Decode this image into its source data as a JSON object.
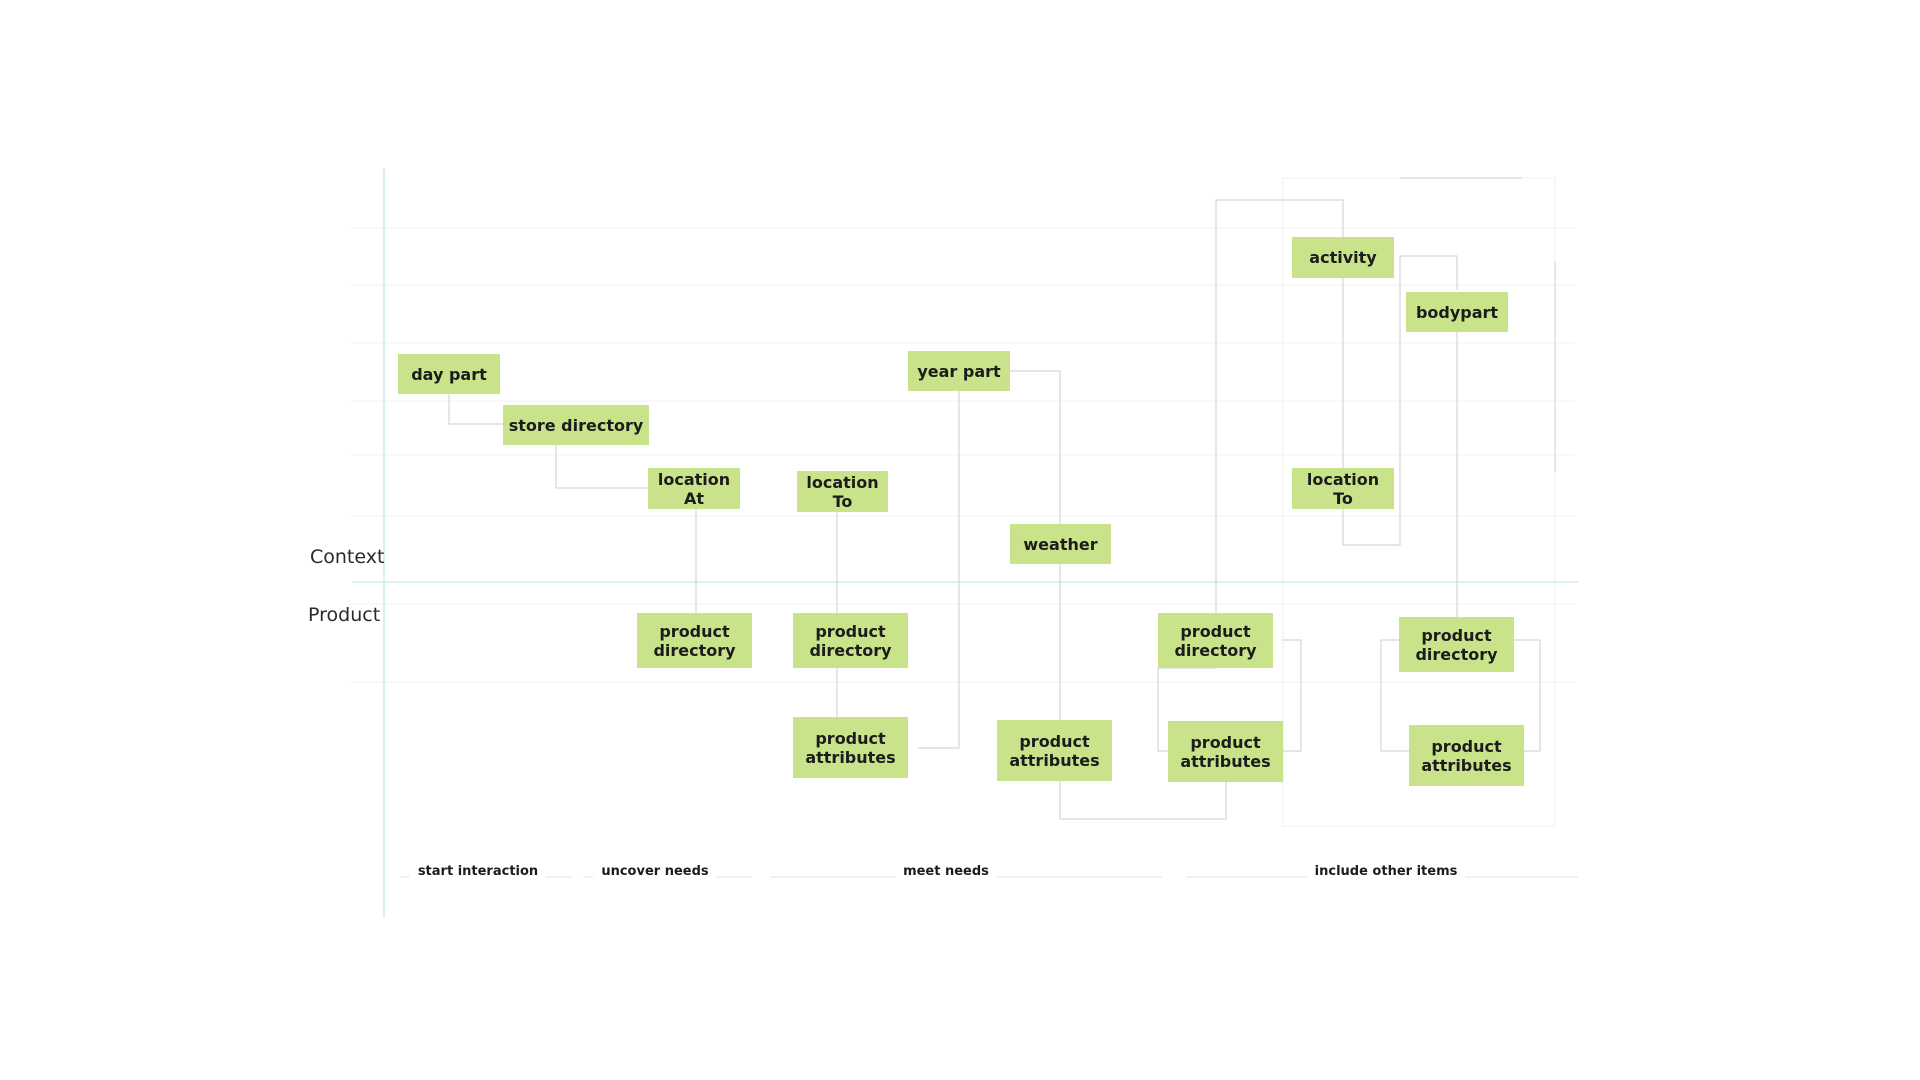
{
  "axes": {
    "context_label": "Context",
    "product_label": "Product"
  },
  "phases": [
    {
      "id": "start",
      "label": "start interaction"
    },
    {
      "id": "uncover",
      "label": "uncover needs"
    },
    {
      "id": "meet",
      "label": "meet needs"
    },
    {
      "id": "include",
      "label": "include other items"
    }
  ],
  "nodes": [
    {
      "id": "day_part",
      "label": "day part"
    },
    {
      "id": "store_directory",
      "label": "store directory"
    },
    {
      "id": "location_at",
      "label": "location\nAt"
    },
    {
      "id": "location_to_1",
      "label": "location\nTo"
    },
    {
      "id": "year_part",
      "label": "year part"
    },
    {
      "id": "weather",
      "label": "weather"
    },
    {
      "id": "activity",
      "label": "activity"
    },
    {
      "id": "bodypart",
      "label": "bodypart"
    },
    {
      "id": "location_to_2",
      "label": "location\nTo"
    },
    {
      "id": "product_directory_1",
      "label": "product\ndirectory"
    },
    {
      "id": "product_directory_2",
      "label": "product\ndirectory"
    },
    {
      "id": "product_attributes_1",
      "label": "product\nattributes"
    },
    {
      "id": "product_attributes_2",
      "label": "product\nattributes"
    },
    {
      "id": "product_directory_3",
      "label": "product\ndirectory"
    },
    {
      "id": "product_attributes_3",
      "label": "product\nattributes"
    },
    {
      "id": "product_directory_4",
      "label": "product\ndirectory"
    },
    {
      "id": "product_attributes_4",
      "label": "product\nattributes"
    }
  ],
  "colors": {
    "node_fill": "#c8e38a",
    "connector": "#c9cdd0",
    "axis": "#b9e2e0",
    "grid": "#f1f2f3"
  }
}
